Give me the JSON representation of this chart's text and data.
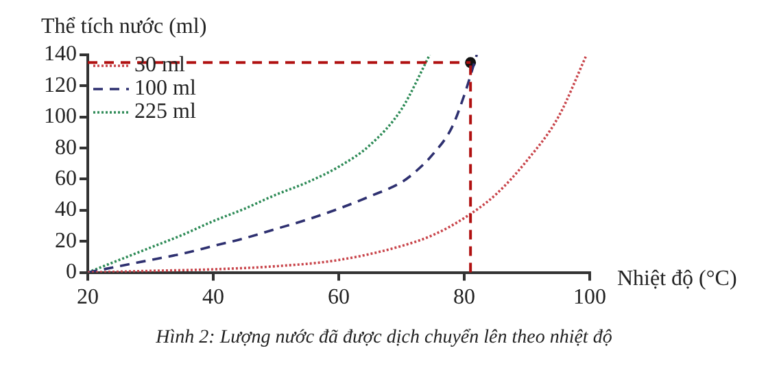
{
  "chart_data": {
    "type": "line",
    "xlabel": "Nhiệt độ (°C)",
    "ylabel": "Thể tích nước (ml)",
    "xlim": [
      20,
      100
    ],
    "xticks": [
      20,
      40,
      60,
      80,
      100
    ],
    "ylim": [
      0,
      140
    ],
    "yticks": [
      0,
      20,
      40,
      60,
      80,
      100,
      120,
      140
    ],
    "grid": false,
    "legend": "top left",
    "marker": "none",
    "series": [
      {
        "name": "30 ml",
        "color": "#c8444a",
        "line_style": "dotted",
        "x": [
          20,
          30,
          40,
          50,
          60,
          70,
          75,
          80,
          85,
          90,
          95,
          99.5
        ],
        "values": [
          0,
          1,
          2,
          4,
          8,
          17,
          24,
          35,
          50,
          72,
          100,
          140
        ]
      },
      {
        "name": "100 ml",
        "color": "#2e3070",
        "line_style": "dashed",
        "x": [
          20,
          25,
          30,
          35,
          40,
          45,
          50,
          55,
          60,
          65,
          70,
          72,
          75,
          78,
          80,
          82
        ],
        "values": [
          0,
          4,
          8,
          12,
          17,
          22,
          28,
          34,
          41,
          49,
          58,
          64,
          76,
          93,
          114,
          140
        ]
      },
      {
        "name": "225 ml",
        "color": "#2e8b57",
        "line_style": "dotted",
        "x": [
          20,
          25,
          30,
          35,
          40,
          45,
          50,
          55,
          60,
          65,
          70,
          74.5
        ],
        "values": [
          0,
          8,
          16,
          24,
          33,
          41,
          50,
          58,
          68,
          82,
          105,
          140
        ]
      },
      {
        "type": "scatter",
        "marker": "circle",
        "color": "#111111",
        "x": [
          81
        ],
        "values": [
          135
        ]
      }
    ],
    "ref_lines": [
      {
        "axis": "x",
        "value": 81,
        "color": "#b01010",
        "line_style": "dashed"
      },
      {
        "axis": "y",
        "value": 135,
        "color": "#b01010",
        "line_style": "dashed"
      }
    ],
    "annotations": [
      "Hình 2: Lượng nước đã được dịch chuyển lên theo nhiệt độ"
    ]
  }
}
